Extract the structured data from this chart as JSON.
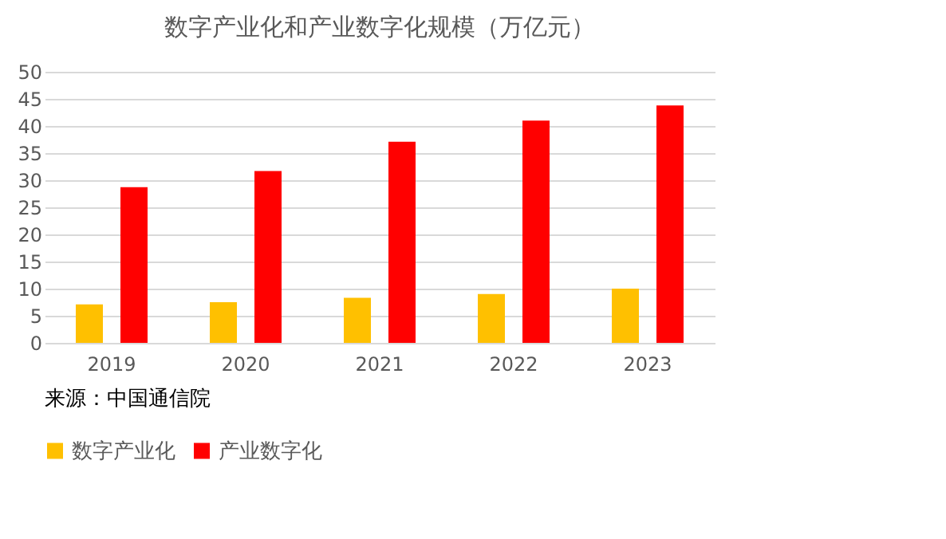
{
  "chart_data": {
    "type": "bar",
    "title": "数字产业化和产业数字化规模（万亿元）",
    "categories": [
      "2019",
      "2020",
      "2021",
      "2022",
      "2023"
    ],
    "series": [
      {
        "name": "数字产业化",
        "color": "#ffc000",
        "values": [
          7.1,
          7.5,
          8.3,
          9.0,
          10.0
        ]
      },
      {
        "name": "产业数字化",
        "color": "#ff0000",
        "values": [
          28.7,
          31.7,
          37.1,
          41.0,
          43.8
        ]
      }
    ],
    "ylim": [
      0,
      50
    ],
    "yticks": [
      0,
      5,
      10,
      15,
      20,
      25,
      30,
      35,
      40,
      45,
      50
    ],
    "grid": "y",
    "legend": "bottom",
    "annotations": [
      "来源：中国通信院"
    ]
  }
}
